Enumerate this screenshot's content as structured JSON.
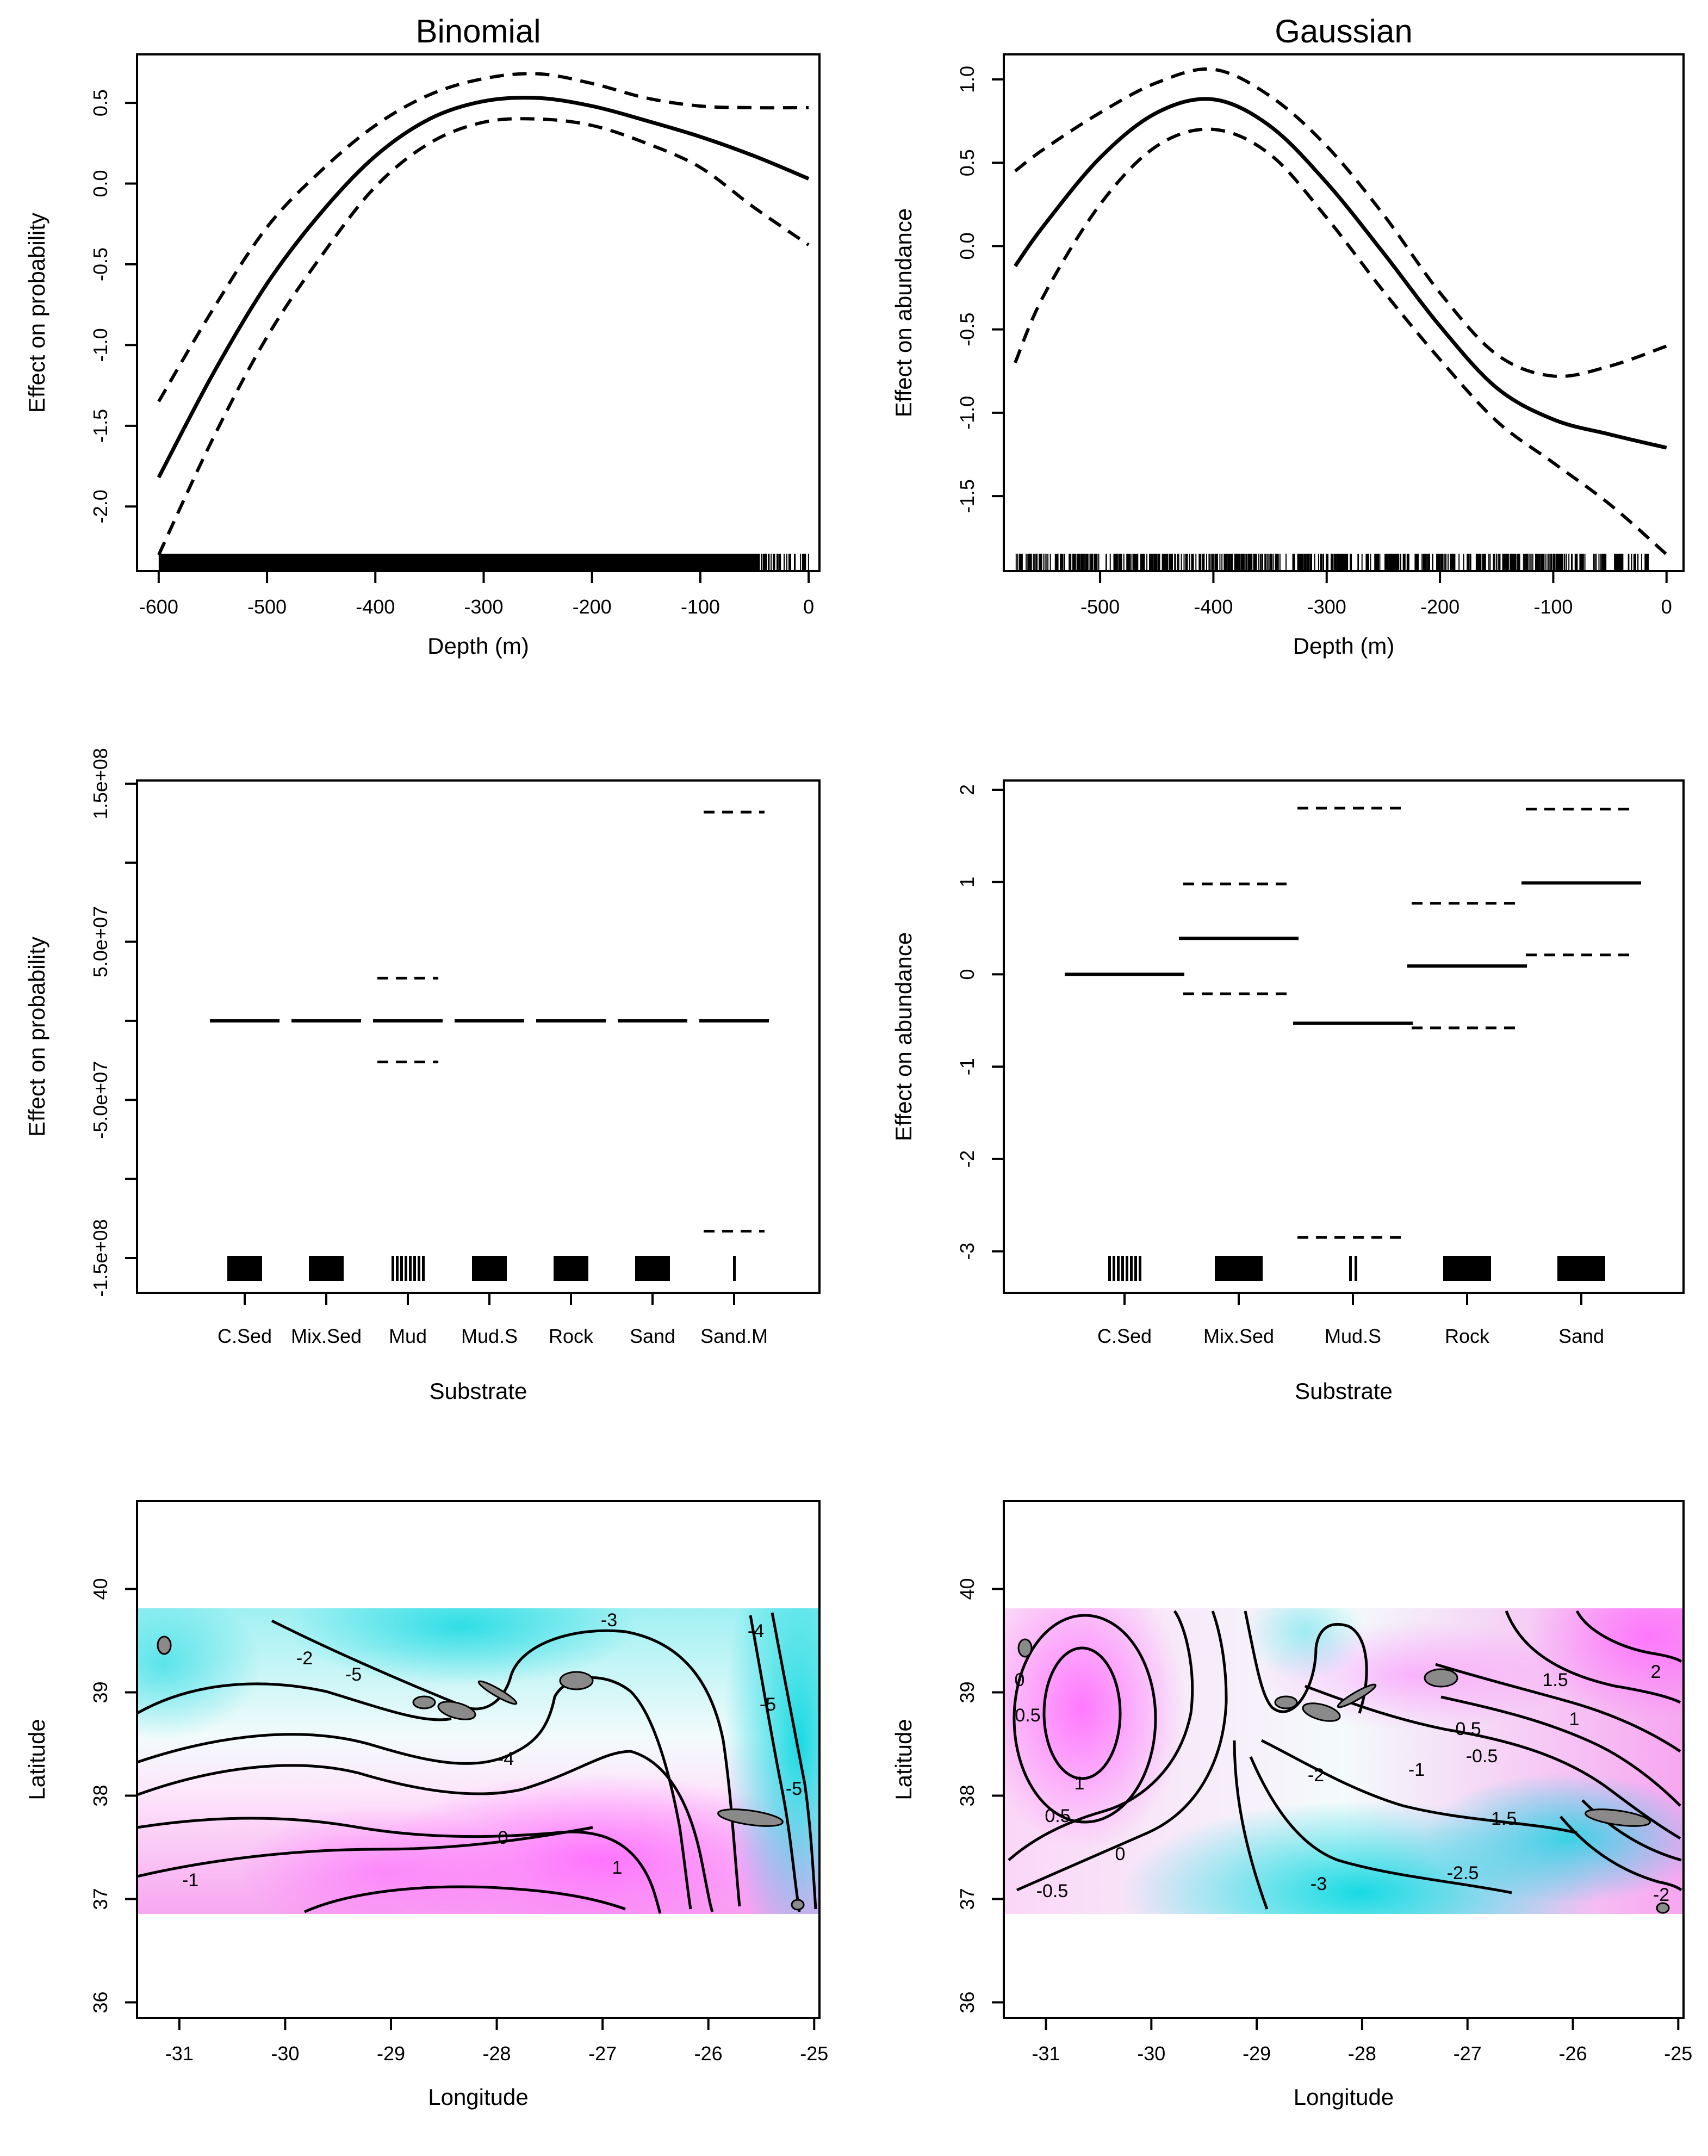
{
  "chart_data": [
    {
      "type": "line",
      "panel": "top-left",
      "title": "Binomial",
      "xlabel": "Depth (m)",
      "ylabel": "Effect on probability",
      "xlim": [
        -620,
        10
      ],
      "ylim": [
        -2.4,
        0.8
      ],
      "xticks": [
        -600,
        -500,
        -400,
        -300,
        -200,
        -100,
        0
      ],
      "yticks": [
        -2.0,
        -1.5,
        -1.0,
        -0.5,
        0.0,
        0.5
      ],
      "ytick_labels": [
        "-2.0",
        "-1.5",
        "-1.0",
        "-0.5",
        "0.0",
        "0.5"
      ],
      "series": [
        {
          "name": "fit",
          "style": "solid",
          "x": [
            -600,
            -550,
            -500,
            -450,
            -400,
            -350,
            -300,
            -250,
            -200,
            -150,
            -100,
            -50,
            0
          ],
          "y": [
            -1.82,
            -1.18,
            -0.62,
            -0.18,
            0.17,
            0.4,
            0.51,
            0.53,
            0.48,
            0.39,
            0.29,
            0.17,
            0.03
          ]
        },
        {
          "name": "upper",
          "style": "dashed",
          "x": [
            -600,
            -550,
            -500,
            -450,
            -400,
            -350,
            -300,
            -250,
            -200,
            -150,
            -100,
            -50,
            0
          ],
          "y": [
            -1.35,
            -0.78,
            -0.27,
            0.08,
            0.36,
            0.55,
            0.65,
            0.68,
            0.62,
            0.53,
            0.48,
            0.47,
            0.47
          ]
        },
        {
          "name": "lower",
          "style": "dashed",
          "x": [
            -600,
            -550,
            -500,
            -450,
            -400,
            -350,
            -300,
            -250,
            -200,
            -150,
            -100,
            -50,
            0
          ],
          "y": [
            -2.3,
            -1.58,
            -0.95,
            -0.45,
            -0.02,
            0.25,
            0.38,
            0.4,
            0.36,
            0.25,
            0.1,
            -0.15,
            -0.38
          ]
        }
      ],
      "rug": "dense -600 to -40, sparse near 0"
    },
    {
      "type": "line",
      "panel": "top-right",
      "title": "Gaussian",
      "xlabel": "Depth (m)",
      "ylabel": "Effect on abundance",
      "xlim": [
        -585,
        15
      ],
      "ylim": [
        -1.95,
        1.15
      ],
      "xticks": [
        -500,
        -400,
        -300,
        -200,
        -100,
        0
      ],
      "yticks": [
        -1.5,
        -1.0,
        -0.5,
        0.0,
        0.5,
        1.0
      ],
      "ytick_labels": [
        "-1.5",
        "-1.0",
        "-0.5",
        "0.0",
        "0.5",
        "1.0"
      ],
      "series": [
        {
          "name": "fit",
          "style": "solid",
          "x": [
            -575,
            -550,
            -500,
            -450,
            -400,
            -350,
            -300,
            -250,
            -200,
            -150,
            -100,
            -50,
            0
          ],
          "y": [
            -0.12,
            0.12,
            0.53,
            0.8,
            0.88,
            0.72,
            0.38,
            -0.04,
            -0.48,
            -0.85,
            -1.04,
            -1.13,
            -1.21
          ]
        },
        {
          "name": "upper",
          "style": "dashed",
          "x": [
            -575,
            -550,
            -500,
            -450,
            -400,
            -350,
            -300,
            -250,
            -200,
            -150,
            -100,
            -50,
            0
          ],
          "y": [
            0.45,
            0.58,
            0.8,
            0.98,
            1.06,
            0.9,
            0.6,
            0.19,
            -0.28,
            -0.65,
            -0.78,
            -0.72,
            -0.6
          ]
        },
        {
          "name": "lower",
          "style": "dashed",
          "x": [
            -575,
            -550,
            -500,
            -450,
            -400,
            -350,
            -300,
            -250,
            -200,
            -150,
            -100,
            -50,
            0
          ],
          "y": [
            -0.7,
            -0.3,
            0.25,
            0.6,
            0.7,
            0.55,
            0.17,
            -0.27,
            -0.68,
            -1.05,
            -1.3,
            -1.55,
            -1.85
          ]
        }
      ],
      "rug": "spread -575 to -25"
    },
    {
      "type": "bar",
      "panel": "middle-left",
      "xlabel": "Substrate",
      "ylabel": "Effect on probability",
      "categories": [
        "C.Sed",
        "Mix.Sed",
        "Mud",
        "Mud.S",
        "Rock",
        "Sand",
        "Sand.M"
      ],
      "values": [
        0,
        0,
        0,
        0,
        0,
        0,
        0
      ],
      "upper": [
        null,
        null,
        27000000,
        null,
        null,
        null,
        132000000
      ],
      "lower": [
        null,
        null,
        -26000000,
        null,
        null,
        null,
        -133000000
      ],
      "yticks": [
        -150000000,
        -50000000,
        50000000,
        150000000
      ],
      "ytick_labels": [
        "-1.5e+08",
        "-5.0e+07",
        "5.0e+07",
        "1.5e+08"
      ],
      "ylim": [
        -172000000,
        152000000
      ]
    },
    {
      "type": "bar",
      "panel": "middle-right",
      "xlabel": "Substrate",
      "ylabel": "Effect on abundance",
      "categories": [
        "C.Sed",
        "Mix.Sed",
        "Mud.S",
        "Rock",
        "Sand"
      ],
      "values": [
        0.0,
        0.39,
        -0.53,
        0.09,
        0.99
      ],
      "upper": [
        null,
        0.98,
        1.8,
        0.77,
        1.79
      ],
      "lower": [
        null,
        -0.21,
        -2.85,
        -0.58,
        0.21
      ],
      "yticks": [
        -3,
        -2,
        -1,
        0,
        1,
        2
      ],
      "ytick_labels": [
        "-3",
        "-2",
        "-1",
        "0",
        "1",
        "2"
      ],
      "ylim": [
        -3.45,
        2.1
      ]
    },
    {
      "type": "heatmap",
      "panel": "bottom-left",
      "xlabel": "Longitude",
      "ylabel": "Latitude",
      "xlim": [
        -31.4,
        -24.95
      ],
      "ylim": [
        35.85,
        40.85
      ],
      "xticks": [
        -31,
        -30,
        -29,
        -28,
        -27,
        -26,
        -25
      ],
      "yticks": [
        36,
        37,
        38,
        39,
        40
      ],
      "contour_labels": [
        "-5",
        "-4",
        "-3",
        "-2",
        "-4",
        "-5",
        "-5",
        "0",
        "1",
        "-1"
      ]
    },
    {
      "type": "heatmap",
      "panel": "bottom-right",
      "xlabel": "Longitude",
      "ylabel": "Latitude",
      "xlim": [
        -31.4,
        -24.95
      ],
      "ylim": [
        35.85,
        40.85
      ],
      "xticks": [
        -31,
        -30,
        -29,
        -28,
        -27,
        -26,
        -25
      ],
      "yticks": [
        36,
        37,
        38,
        39,
        40
      ],
      "contour_labels": [
        "0",
        "0.5",
        "1",
        "0.5",
        "0",
        "-0.5",
        "-2",
        "-3",
        "0.5",
        "1",
        "-0.5",
        "-1",
        "-1.5",
        "-2.5",
        "1.5",
        "2",
        "-2"
      ]
    }
  ]
}
